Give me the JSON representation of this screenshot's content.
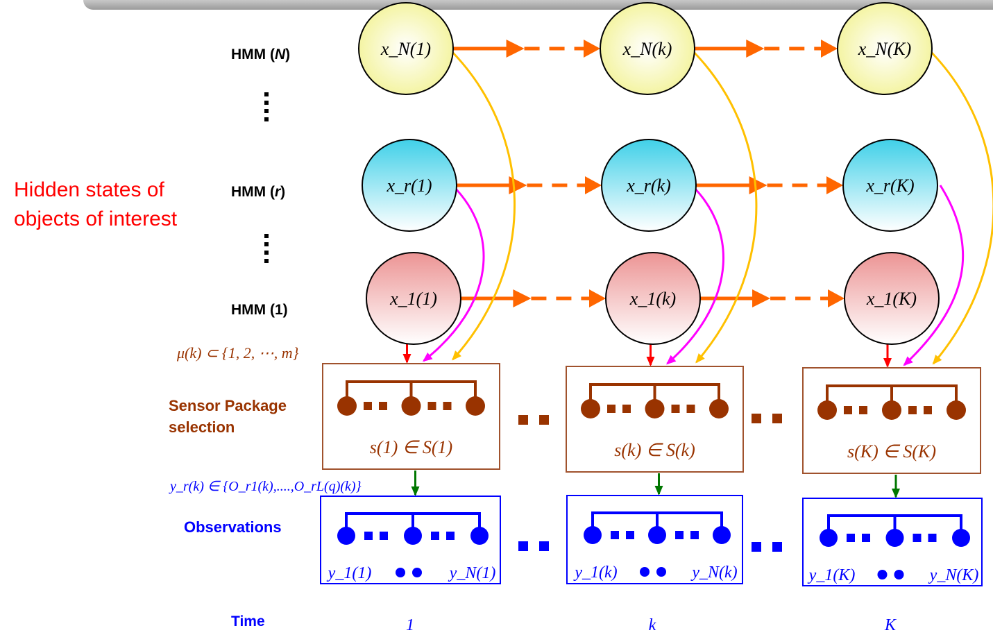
{
  "hidden_states_label": [
    "Hidden states of",
    "objects of interest"
  ],
  "hmm_labels": {
    "n": {
      "prefix": "HMM (",
      "var": "N",
      "suffix": ")"
    },
    "r": {
      "prefix": "HMM (",
      "var": "r",
      "suffix": ")"
    },
    "one": "HMM (1)"
  },
  "side_labels": {
    "sensor_line1": "Sensor Package",
    "sensor_line2": "selection",
    "observations": "Observations",
    "time": "Time"
  },
  "formulas": {
    "mu": "μ(k) ⊂ {1, 2, ⋯, m}",
    "y_r": "y_r(k) ∈ {O_r1(k),....,O_rL(q)(k)}"
  },
  "time_steps": [
    {
      "time_label": "1",
      "nodes": {
        "N": "x_N(1)",
        "r": "x_r(1)",
        "one": "x_1(1)"
      },
      "sensor_text": "s(1) ∈ S(1)",
      "obs_left": "y_1(1)",
      "obs_right": "y_N(1)"
    },
    {
      "time_label": "k",
      "nodes": {
        "N": "x_N(k)",
        "r": "x_r(k)",
        "one": "x_1(k)"
      },
      "sensor_text": "s(k) ∈ S(k)",
      "obs_left": "y_1(k)",
      "obs_right": "y_N(k)"
    },
    {
      "time_label": "K",
      "nodes": {
        "N": "x_N(K)",
        "r": "x_r(K)",
        "one": "x_1(K)"
      },
      "sensor_text": "s(K) ∈ S(K)",
      "obs_left": "y_1(K)",
      "obs_right": "y_N(K)"
    }
  ],
  "colors": {
    "hidden_label": "#ff0000",
    "sensor": "#993300",
    "sensor_box": "#a0522d",
    "observation": "#0000ff",
    "transition_arrow": "#ff6600",
    "red_arrow": "#ff0000",
    "magenta_arrow": "#ff00ff",
    "gold_arrow": "#ffc000",
    "green_arrow": "#007700",
    "node_N": "#ffffb0",
    "node_r": "#7fe8f0",
    "node_1": "#f0a0a0"
  }
}
